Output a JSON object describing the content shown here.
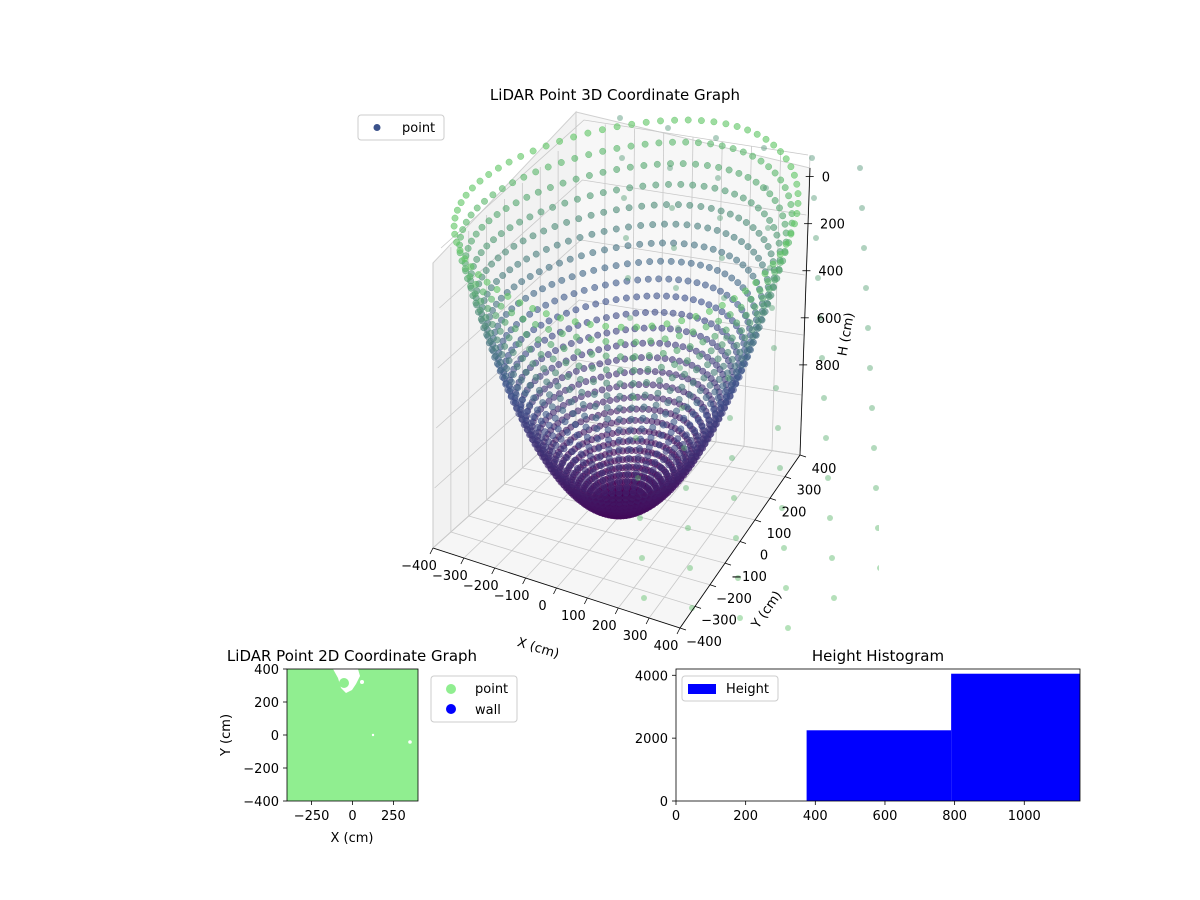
{
  "figure": {
    "background": "#ffffff"
  },
  "chart_data": [
    {
      "type": "scatter",
      "projection": "3d",
      "title": "LiDAR Point 3D Coordinate Graph",
      "xlabel": "X (cm)",
      "ylabel": "Y (cm)",
      "zlabel": "H (cm)",
      "xticks": [
        -400,
        -300,
        -200,
        -100,
        0,
        100,
        200,
        300,
        400
      ],
      "yticks": [
        -400,
        -300,
        -200,
        -100,
        0,
        100,
        200,
        300,
        400
      ],
      "zticks": [
        0,
        200,
        400,
        600,
        800
      ],
      "xlim": [
        -400,
        400
      ],
      "ylim": [
        -400,
        400
      ],
      "zlim": [
        0,
        1000
      ],
      "z_axis_inverted": true,
      "grid": true,
      "legend": {
        "location": "upper-left",
        "entries": [
          {
            "label": "point",
            "color": "#3b528b"
          }
        ]
      },
      "colormap": "viridis",
      "structure": "bowl-shaped point cloud sampled on rays from origin (LiDAR scan pattern)",
      "colors": {
        "low": "#440154",
        "mid": "#3b528b",
        "high": "#5ec962"
      }
    },
    {
      "type": "scatter",
      "title": "LiDAR Point 2D Coordinate Graph",
      "xlabel": "X (cm)",
      "ylabel": "Y (cm)",
      "xticks": [
        -250,
        0,
        250
      ],
      "yticks": [
        -400,
        -200,
        0,
        200,
        400
      ],
      "xlim": [
        -400,
        400
      ],
      "ylim": [
        -400,
        400
      ],
      "grid": false,
      "legend": {
        "location": "outside-right",
        "entries": [
          {
            "label": "point",
            "color": "#90ee90"
          },
          {
            "label": "wall",
            "color": "#0000ff"
          }
        ]
      },
      "series": [
        {
          "name": "point",
          "color": "#90ee90",
          "coverage": "nearly entire plot area"
        },
        {
          "name": "wall",
          "color": "#0000ff",
          "points": []
        }
      ]
    },
    {
      "type": "bar",
      "subtype": "histogram",
      "title": "Height Histogram",
      "xlabel": "",
      "ylabel": "",
      "xticks": [
        0,
        200,
        400,
        600,
        800,
        1000
      ],
      "yticks": [
        0,
        2000,
        4000
      ],
      "xlim": [
        0,
        1160
      ],
      "ylim": [
        0,
        4200
      ],
      "grid": false,
      "legend": {
        "location": "upper-left",
        "entries": [
          {
            "label": "Height",
            "color": "#0000ff"
          }
        ]
      },
      "series": [
        {
          "name": "Height",
          "color": "#0000ff",
          "bins": [
            {
              "from": 0,
              "to": 375,
              "count": 0
            },
            {
              "from": 375,
              "to": 790,
              "count": 2250
            },
            {
              "from": 790,
              "to": 1160,
              "count": 4050
            }
          ]
        }
      ]
    }
  ]
}
